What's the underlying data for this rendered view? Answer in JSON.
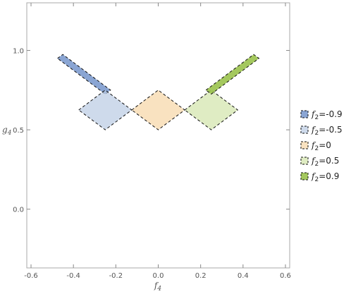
{
  "chart_data": {
    "type": "area",
    "title": "",
    "xlabel": "f",
    "xlabel_sub": "4",
    "ylabel": "g",
    "ylabel_sub": "4",
    "xlim": [
      -0.62,
      0.62
    ],
    "ylim": [
      -0.37,
      1.3
    ],
    "x_ticks": [
      -0.6,
      -0.4,
      -0.2,
      0.0,
      0.2,
      0.4,
      0.6
    ],
    "x_tick_labels": [
      "-0.6",
      "-0.4",
      "-0.2",
      "0.0",
      "0.2",
      "0.4",
      "0.6"
    ],
    "y_ticks": [
      0.0,
      0.5,
      1.0
    ],
    "y_tick_labels": [
      "0.0",
      "0.5",
      "1.0"
    ],
    "grid": false,
    "frame": true,
    "legend_position": "right",
    "series": [
      {
        "name_prefix": "f",
        "name_sub": "2",
        "name_suffix": "=-0.9",
        "param": -0.9,
        "color": "#6d8fc8",
        "fill_opacity": 0.8,
        "polygon": [
          [
            -0.475,
            0.95
          ],
          [
            -0.45,
            0.975
          ],
          [
            -0.225,
            0.75
          ],
          [
            -0.25,
            0.725
          ]
        ]
      },
      {
        "name_prefix": "f",
        "name_sub": "2",
        "name_suffix": "=-0.5",
        "param": -0.5,
        "color": "#b9cbe3",
        "fill_opacity": 0.7,
        "polygon": [
          [
            -0.375,
            0.625
          ],
          [
            -0.25,
            0.75
          ],
          [
            -0.125,
            0.625
          ],
          [
            -0.25,
            0.5
          ]
        ]
      },
      {
        "name_prefix": "f",
        "name_sub": "2",
        "name_suffix": "=0",
        "param": 0.0,
        "color": "#f5cf96",
        "fill_opacity": 0.6,
        "polygon": [
          [
            -0.125,
            0.625
          ],
          [
            0.0,
            0.75
          ],
          [
            0.125,
            0.625
          ],
          [
            0.0,
            0.5
          ]
        ]
      },
      {
        "name_prefix": "f",
        "name_sub": "2",
        "name_suffix": "=0.5",
        "param": 0.5,
        "color": "#d2e4a9",
        "fill_opacity": 0.7,
        "polygon": [
          [
            0.125,
            0.625
          ],
          [
            0.25,
            0.75
          ],
          [
            0.375,
            0.625
          ],
          [
            0.25,
            0.5
          ]
        ]
      },
      {
        "name_prefix": "f",
        "name_sub": "2",
        "name_suffix": "=0.9",
        "param": 0.9,
        "color": "#9ac24c",
        "fill_opacity": 0.9,
        "polygon": [
          [
            0.225,
            0.75
          ],
          [
            0.45,
            0.975
          ],
          [
            0.475,
            0.95
          ],
          [
            0.25,
            0.725
          ]
        ]
      }
    ]
  }
}
